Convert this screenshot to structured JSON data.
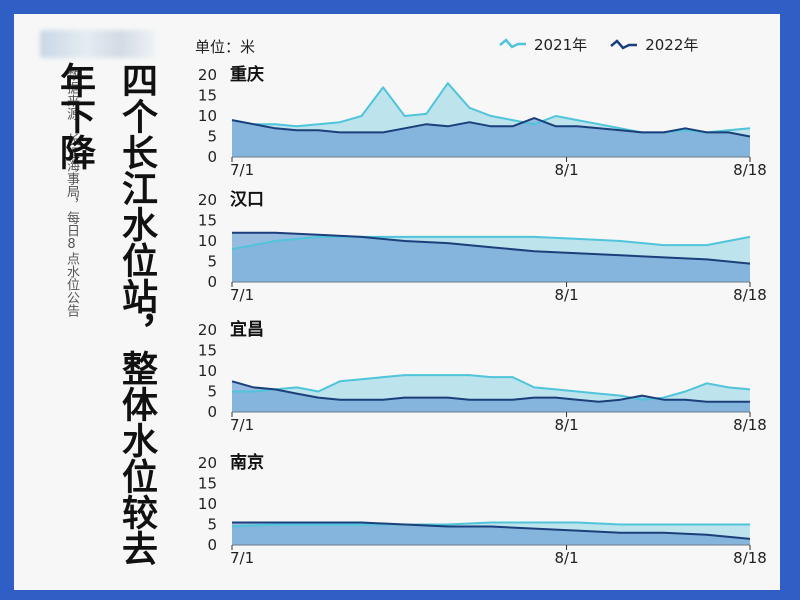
{
  "colors": {
    "c2021": "#4fc4da",
    "c2022": "#1b3f7a",
    "fill2021": "#aadcea",
    "fill2022": "#6d9fd5"
  },
  "source_text": "数据来源：长江海事局，每日8点水位公告",
  "headline": "四个长江水位站，整体水位较去年下降",
  "unit_label": "单位：米",
  "legend": [
    {
      "name": "2021年"
    },
    {
      "name": "2022年"
    }
  ],
  "chart_data": [
    {
      "type": "area",
      "title": "重庆",
      "x_ticks": [
        "7/1",
        "8/1",
        "8/18"
      ],
      "ylim": [
        0,
        20
      ],
      "yticks": [
        "20",
        "15",
        "10",
        "5",
        "0"
      ],
      "series": [
        {
          "name": "2021年",
          "x": [
            0,
            2,
            4,
            6,
            8,
            10,
            12,
            14,
            16,
            18,
            20,
            22,
            24,
            26,
            28,
            30,
            32,
            34,
            36,
            38,
            40,
            42,
            44,
            46,
            48
          ],
          "values": [
            9,
            8,
            8,
            7.5,
            8,
            8.5,
            10,
            17,
            10,
            10.5,
            18,
            12,
            10,
            9,
            8,
            10,
            9,
            8,
            7,
            6,
            6,
            6.5,
            6,
            6.5,
            7
          ]
        },
        {
          "name": "2022年",
          "x": [
            0,
            2,
            4,
            6,
            8,
            10,
            12,
            14,
            16,
            18,
            20,
            22,
            24,
            26,
            28,
            30,
            32,
            34,
            36,
            38,
            40,
            42,
            44,
            46,
            48
          ],
          "values": [
            9,
            8,
            7,
            6.5,
            6.5,
            6,
            6,
            6,
            7,
            8,
            7.5,
            8.5,
            7.5,
            7.5,
            9.5,
            7.5,
            7.5,
            7,
            6.5,
            6,
            6,
            7,
            6,
            6,
            5
          ]
        }
      ]
    },
    {
      "type": "area",
      "title": "汉口",
      "x_ticks": [
        "7/1",
        "8/1",
        "8/18"
      ],
      "ylim": [
        0,
        20
      ],
      "yticks": [
        "20",
        "15",
        "10",
        "5",
        "0"
      ],
      "series": [
        {
          "name": "2021年",
          "x": [
            0,
            4,
            8,
            12,
            16,
            20,
            24,
            28,
            32,
            36,
            40,
            44,
            48
          ],
          "values": [
            8,
            10,
            11,
            11,
            11,
            11,
            11,
            11,
            10.5,
            10,
            9,
            9,
            11
          ]
        },
        {
          "name": "2022年",
          "x": [
            0,
            4,
            8,
            12,
            16,
            20,
            24,
            28,
            32,
            36,
            40,
            44,
            48
          ],
          "values": [
            12,
            12,
            11.5,
            11,
            10,
            9.5,
            8.5,
            7.5,
            7,
            6.5,
            6,
            5.5,
            4.5
          ]
        }
      ]
    },
    {
      "type": "area",
      "title": "宜昌",
      "x_ticks": [
        "7/1",
        "8/1",
        "8/18"
      ],
      "ylim": [
        0,
        20
      ],
      "yticks": [
        "20",
        "15",
        "10",
        "5",
        "0"
      ],
      "series": [
        {
          "name": "2021年",
          "x": [
            0,
            2,
            4,
            6,
            8,
            10,
            12,
            14,
            16,
            18,
            20,
            22,
            24,
            26,
            28,
            30,
            32,
            34,
            36,
            38,
            40,
            42,
            44,
            46,
            48
          ],
          "values": [
            5,
            5,
            5.5,
            6,
            5,
            7.5,
            8,
            8.5,
            9,
            9,
            9,
            9,
            8.5,
            8.5,
            6,
            5.5,
            5,
            4.5,
            4,
            3,
            3.5,
            5,
            7,
            6,
            5.5
          ]
        },
        {
          "name": "2022年",
          "x": [
            0,
            2,
            4,
            6,
            8,
            10,
            12,
            14,
            16,
            18,
            20,
            22,
            24,
            26,
            28,
            30,
            32,
            34,
            36,
            38,
            40,
            42,
            44,
            46,
            48
          ],
          "values": [
            7.5,
            6,
            5.5,
            4.5,
            3.5,
            3,
            3,
            3,
            3.5,
            3.5,
            3.5,
            3,
            3,
            3,
            3.5,
            3.5,
            3,
            2.5,
            3,
            4,
            3,
            3,
            2.5,
            2.5,
            2.5
          ]
        }
      ]
    },
    {
      "type": "area",
      "title": "南京",
      "x_ticks": [
        "7/1",
        "8/1",
        "8/18"
      ],
      "ylim": [
        0,
        20
      ],
      "yticks": [
        "20",
        "15",
        "10",
        "5",
        "0"
      ],
      "series": [
        {
          "name": "2021年",
          "x": [
            0,
            4,
            8,
            12,
            16,
            20,
            24,
            28,
            32,
            36,
            40,
            44,
            48
          ],
          "values": [
            4.5,
            5,
            5,
            5,
            5,
            5,
            5.5,
            5.5,
            5.5,
            5,
            5,
            5,
            5
          ]
        },
        {
          "name": "2022年",
          "x": [
            0,
            4,
            8,
            12,
            16,
            20,
            24,
            28,
            32,
            36,
            40,
            44,
            48
          ],
          "values": [
            5.5,
            5.5,
            5.5,
            5.5,
            5,
            4.5,
            4.5,
            4,
            3.5,
            3,
            3,
            2.5,
            1.5
          ]
        }
      ]
    }
  ]
}
